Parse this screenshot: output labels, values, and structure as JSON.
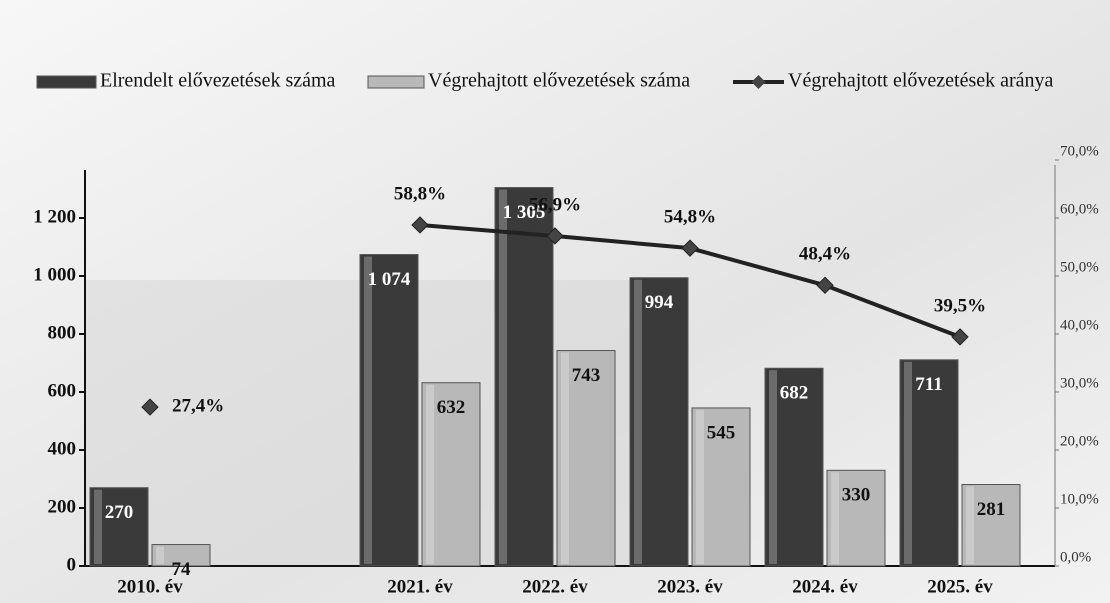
{
  "chart_data": {
    "type": "bar",
    "categories": [
      "2010. év",
      null,
      "2021. év",
      "2022. év",
      "2023. év",
      "2024. év",
      "2025. év"
    ],
    "series": [
      {
        "name": "Elrendelt elővezetések száma",
        "type": "bar",
        "color": "#3a3a3a",
        "values": [
          270,
          null,
          1074,
          1305,
          994,
          682,
          711
        ],
        "value_labels": [
          "270",
          null,
          "1 074",
          "1 305",
          "994",
          "682",
          "711"
        ]
      },
      {
        "name": "Végrehajtott elővezetések száma",
        "type": "bar",
        "color": "#b8b8b8",
        "values": [
          74,
          null,
          632,
          743,
          545,
          330,
          281
        ],
        "value_labels": [
          "74",
          null,
          "632",
          "743",
          "545",
          "330",
          "281"
        ]
      },
      {
        "name": "Végrehajtott elővezetések aránya",
        "type": "line",
        "axis": "y2",
        "color": "#222222",
        "values": [
          27.4,
          null,
          58.8,
          56.9,
          54.8,
          48.4,
          39.5
        ],
        "value_labels": [
          "27,4%",
          null,
          "58,8%",
          "56,9%",
          "54,8%",
          "48,4%",
          "39,5%"
        ]
      }
    ],
    "ylim": [
      0,
      1400
    ],
    "yticks": [
      0,
      200,
      400,
      600,
      800,
      {
        "value": 1000,
        "label": "1 000"
      },
      {
        "value": 1200,
        "label": "1 200"
      }
    ],
    "y2lim": [
      0,
      70
    ],
    "y2ticks": [
      {
        "value": 0,
        "label": "0,0%"
      },
      {
        "value": 10,
        "label": "10,0%"
      },
      {
        "value": 20,
        "label": "20,0%"
      },
      {
        "value": 30,
        "label": "30,0%"
      },
      {
        "value": 40,
        "label": "40,0%"
      },
      {
        "value": 50,
        "label": "50,0%"
      },
      {
        "value": 60,
        "label": "60,0%"
      },
      {
        "value": 70,
        "label": "70,0%"
      }
    ],
    "legend": "top"
  }
}
